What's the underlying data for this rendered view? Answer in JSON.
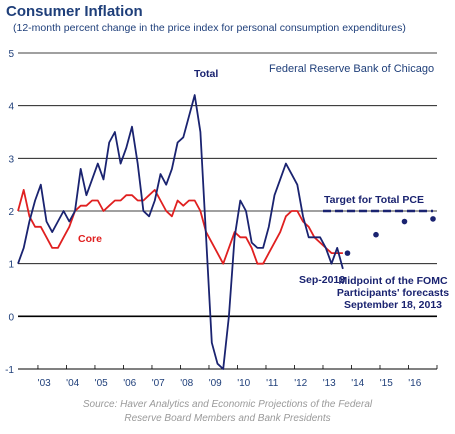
{
  "chart_data": {
    "type": "line",
    "title": "Consumer Inflation",
    "subtitle": "(12-month percent change in the price index for personal consumption expenditures)",
    "source_line1": "Source: Haver Analytics and Economic Projections of the Federal",
    "source_line2": "Reserve Board Members and Bank Presidents",
    "brand_label": "Federal Reserve Bank of Chicago",
    "xlim": [
      2002.3,
      2017.0
    ],
    "ylim": [
      -1,
      5
    ],
    "y_ticks": [
      "-1",
      "0",
      "1",
      "2",
      "3",
      "4",
      "5"
    ],
    "x_ticks": [
      "'03",
      "'04",
      "'05",
      "'06",
      "'07",
      "'08",
      "'09",
      "'10",
      "'11",
      "'12",
      "'13",
      "'14",
      "'15",
      "'16"
    ],
    "grid": "horizontal",
    "series": [
      {
        "name": "Total",
        "color": "#1a2370",
        "x": [
          2002.3,
          2002.5,
          2002.7,
          2002.9,
          2003.1,
          2003.3,
          2003.5,
          2003.7,
          2003.9,
          2004.1,
          2004.3,
          2004.5,
          2004.7,
          2004.9,
          2005.1,
          2005.3,
          2005.5,
          2005.7,
          2005.9,
          2006.1,
          2006.3,
          2006.5,
          2006.7,
          2006.9,
          2007.1,
          2007.3,
          2007.5,
          2007.7,
          2007.9,
          2008.1,
          2008.3,
          2008.5,
          2008.7,
          2008.9,
          2009.1,
          2009.3,
          2009.5,
          2009.7,
          2009.9,
          2010.1,
          2010.3,
          2010.5,
          2010.7,
          2010.9,
          2011.1,
          2011.3,
          2011.5,
          2011.7,
          2011.9,
          2012.1,
          2012.3,
          2012.5,
          2012.7,
          2012.9,
          2013.1,
          2013.3,
          2013.5,
          2013.7
        ],
        "values": [
          1.0,
          1.3,
          1.8,
          2.2,
          2.5,
          1.8,
          1.6,
          1.8,
          2.0,
          1.8,
          2.0,
          2.8,
          2.3,
          2.6,
          2.9,
          2.6,
          3.3,
          3.5,
          2.9,
          3.2,
          3.6,
          2.9,
          2.0,
          1.9,
          2.2,
          2.7,
          2.5,
          2.8,
          3.3,
          3.4,
          3.8,
          4.2,
          3.5,
          1.5,
          -0.5,
          -0.9,
          -1.0,
          0.0,
          1.5,
          2.2,
          2.0,
          1.4,
          1.3,
          1.3,
          1.7,
          2.3,
          2.6,
          2.9,
          2.7,
          2.5,
          1.9,
          1.5,
          1.5,
          1.5,
          1.3,
          1.0,
          1.3,
          0.9
        ]
      },
      {
        "name": "Core",
        "color": "#e02020",
        "x": [
          2002.3,
          2002.5,
          2002.7,
          2002.9,
          2003.1,
          2003.3,
          2003.5,
          2003.7,
          2003.9,
          2004.1,
          2004.3,
          2004.5,
          2004.7,
          2004.9,
          2005.1,
          2005.3,
          2005.5,
          2005.7,
          2005.9,
          2006.1,
          2006.3,
          2006.5,
          2006.7,
          2006.9,
          2007.1,
          2007.3,
          2007.5,
          2007.7,
          2007.9,
          2008.1,
          2008.3,
          2008.5,
          2008.7,
          2008.9,
          2009.1,
          2009.3,
          2009.5,
          2009.7,
          2009.9,
          2010.1,
          2010.3,
          2010.5,
          2010.7,
          2010.9,
          2011.1,
          2011.3,
          2011.5,
          2011.7,
          2011.9,
          2012.1,
          2012.3,
          2012.5,
          2012.7,
          2012.9,
          2013.1,
          2013.3,
          2013.5,
          2013.7
        ],
        "values": [
          2.0,
          2.4,
          1.9,
          1.7,
          1.7,
          1.5,
          1.3,
          1.3,
          1.5,
          1.7,
          2.0,
          2.1,
          2.1,
          2.2,
          2.2,
          2.0,
          2.1,
          2.2,
          2.2,
          2.3,
          2.3,
          2.2,
          2.2,
          2.3,
          2.4,
          2.2,
          2.0,
          1.9,
          2.2,
          2.1,
          2.2,
          2.2,
          2.0,
          1.6,
          1.4,
          1.2,
          1.0,
          1.3,
          1.6,
          1.5,
          1.5,
          1.3,
          1.0,
          1.0,
          1.2,
          1.4,
          1.6,
          1.9,
          2.0,
          2.0,
          1.8,
          1.7,
          1.5,
          1.4,
          1.3,
          1.2,
          1.2,
          1.2
        ]
      }
    ],
    "labels": {
      "total": "Total",
      "core": "Core",
      "target": "Target for Total PCE",
      "last_obs": "Sep-2013",
      "fomc_line1": "Midpoint of the FOMC",
      "fomc_line2": "Participants' forecasts",
      "fomc_line3": "September 18, 2013"
    },
    "target": {
      "value": 2,
      "x_start": 2013.0,
      "x_end": 2017.0
    },
    "forecasts": {
      "x": [
        2014.0,
        2015.0,
        2016.0,
        2017.0
      ],
      "values": [
        1.2,
        1.55,
        1.8,
        1.85
      ]
    }
  }
}
